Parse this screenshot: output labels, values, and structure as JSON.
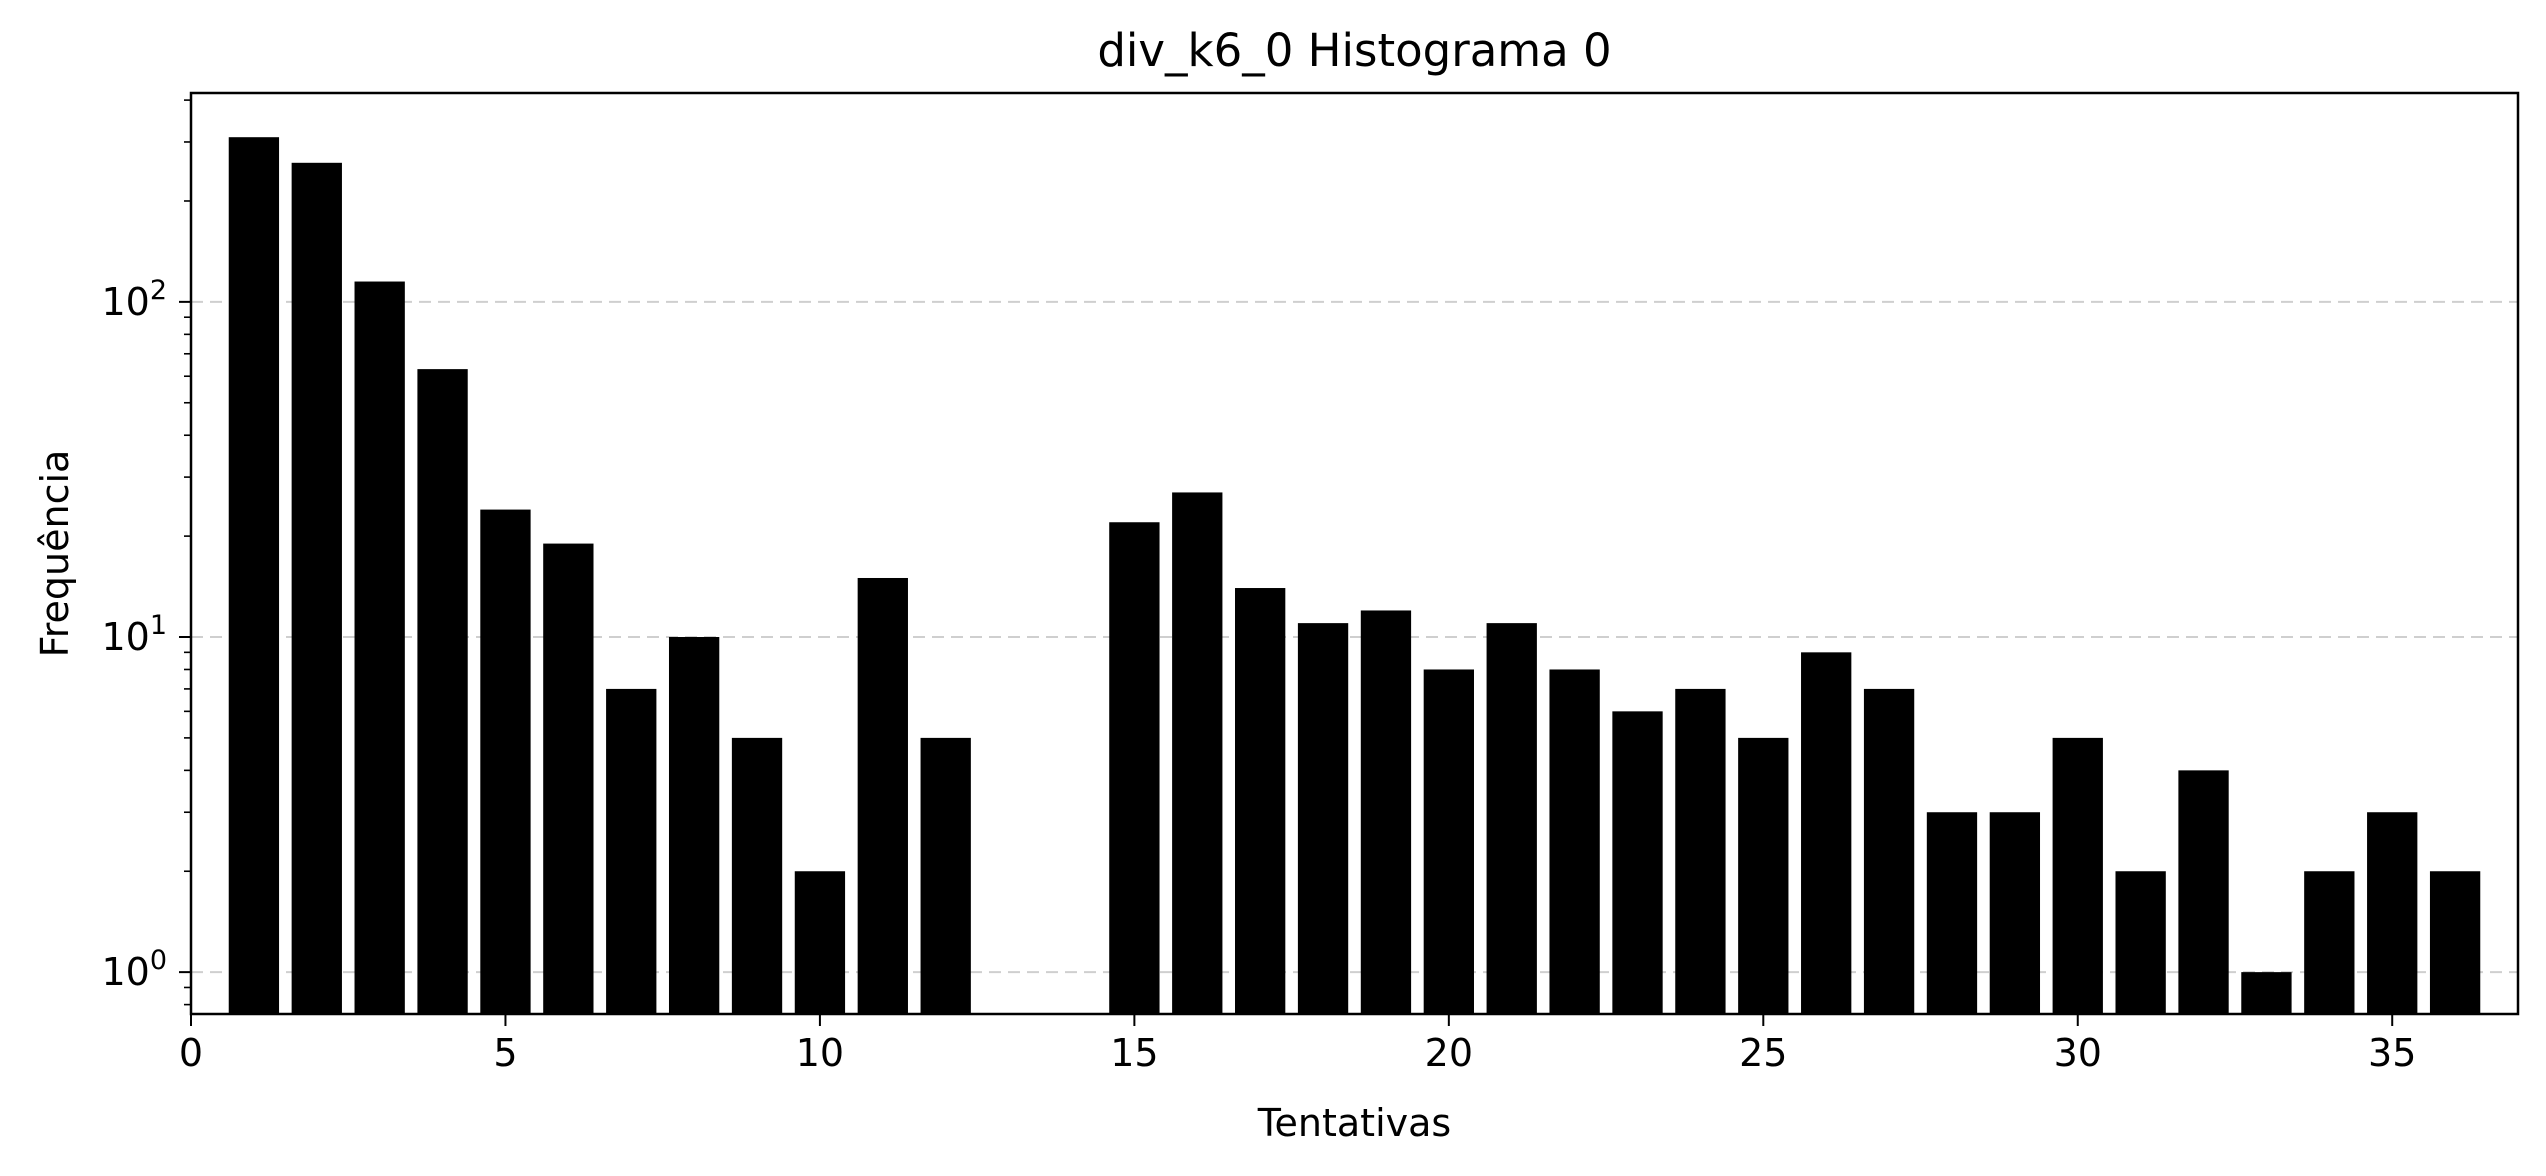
{
  "chart_data": {
    "type": "bar",
    "title": "div_k6_0 Histograma 0",
    "xlabel": "Tentativas",
    "ylabel": "Frequência",
    "yscale": "log",
    "xlim": [
      0,
      37
    ],
    "ylim": [
      0.75,
      420
    ],
    "x_ticks": [
      0,
      5,
      10,
      15,
      20,
      25,
      30,
      35
    ],
    "y_ticks": [
      1,
      10,
      100
    ],
    "y_tick_labels": [
      {
        "base": "10",
        "exp": "0"
      },
      {
        "base": "10",
        "exp": "1"
      },
      {
        "base": "10",
        "exp": "2"
      }
    ],
    "grid": "y-major-dashed",
    "legend": "none",
    "bar_color": "#000000",
    "x": [
      1,
      2,
      3,
      4,
      5,
      6,
      7,
      8,
      9,
      10,
      11,
      12,
      15,
      16,
      17,
      18,
      19,
      20,
      21,
      22,
      23,
      24,
      25,
      26,
      27,
      28,
      29,
      30,
      31,
      32,
      33,
      34,
      35,
      36
    ],
    "values": [
      310,
      260,
      115,
      63,
      24,
      19,
      7,
      10,
      5,
      2,
      15,
      5,
      22,
      27,
      14,
      11,
      12,
      8,
      11,
      8,
      6,
      7,
      5,
      9,
      7,
      3,
      3,
      5,
      2,
      4,
      1,
      2,
      3,
      2
    ]
  }
}
